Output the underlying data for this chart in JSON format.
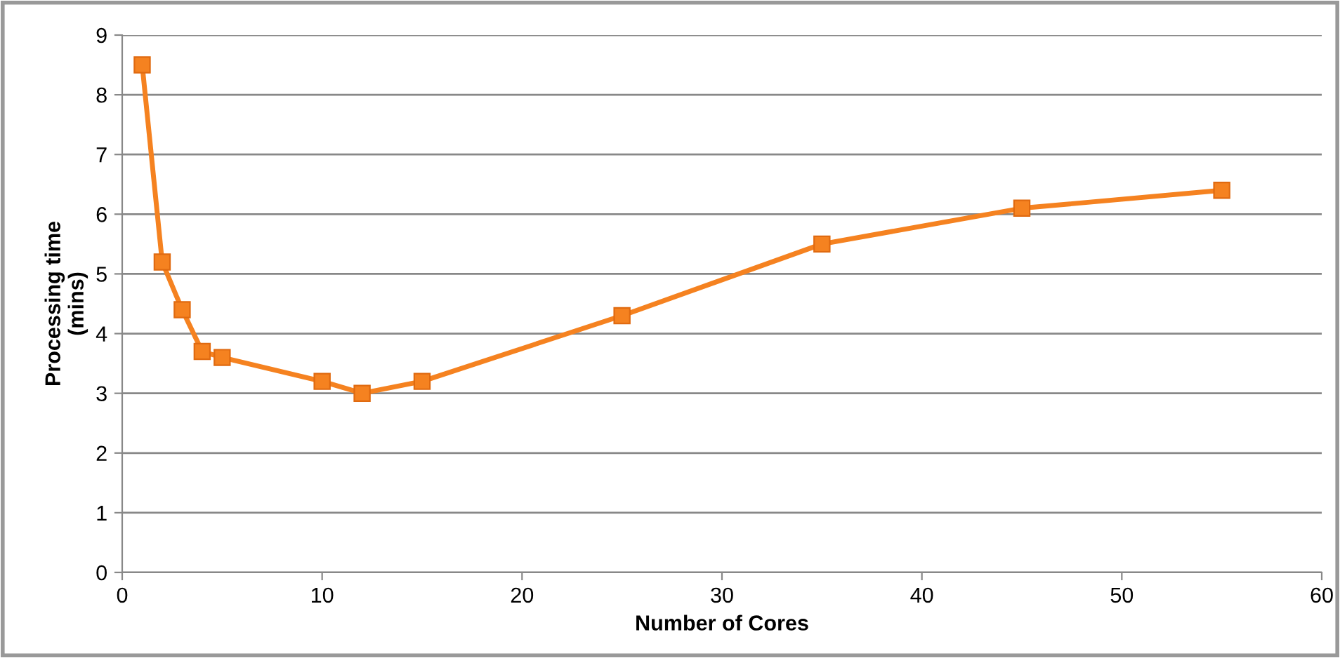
{
  "chart_data": {
    "type": "line",
    "xlabel": "Number of Cores",
    "ylabel": "Processing time\n(mins)",
    "x": [
      1,
      2,
      3,
      4,
      5,
      10,
      12,
      15,
      25,
      35,
      45,
      55
    ],
    "series": [
      {
        "color": "#f58220",
        "values": [
          8.5,
          5.2,
          4.4,
          3.7,
          3.6,
          3.2,
          3.0,
          3.2,
          4.3,
          5.5,
          6.1,
          6.4
        ]
      }
    ],
    "xlim": [
      0,
      60
    ],
    "xticks": [
      0,
      10,
      20,
      30,
      40,
      50,
      60
    ],
    "ylim": [
      0,
      9
    ],
    "yticks": [
      0,
      1,
      2,
      3,
      4,
      5,
      6,
      7,
      8,
      9
    ],
    "grid": "y",
    "marker": "square",
    "line_style": "solid"
  }
}
